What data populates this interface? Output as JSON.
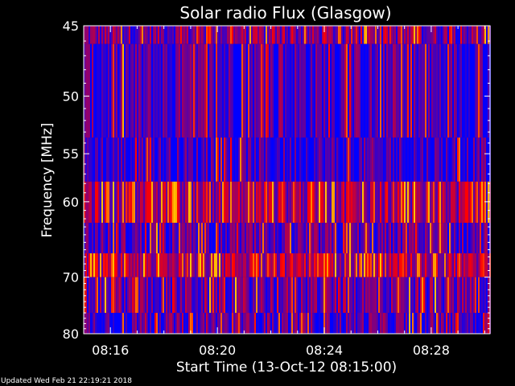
{
  "chart_data": {
    "type": "heatmap",
    "title": "Solar radio Flux (Glasgow)",
    "xlabel": "Start Time (13-Oct-12 08:15:00)",
    "ylabel": "Frequency [MHz]",
    "x_tick_labels": [
      "08:16",
      "08:20",
      "08:24",
      "08:28"
    ],
    "x_tick_minutes": [
      16,
      20,
      24,
      28
    ],
    "x_range_minutes": [
      15,
      30.2
    ],
    "y_ticks": [
      45,
      50,
      55,
      60,
      70,
      80
    ],
    "y_scale": "reciprocal",
    "y_range": [
      45,
      80
    ],
    "frequency_bands_mhz": [
      {
        "from": 45.0,
        "to": 46.2,
        "level": 0.45
      },
      {
        "from": 46.2,
        "to": 53.5,
        "level": 0.25
      },
      {
        "from": 53.5,
        "to": 57.8,
        "level": 0.2
      },
      {
        "from": 57.8,
        "to": 62.5,
        "level": 0.6
      },
      {
        "from": 62.5,
        "to": 66.5,
        "level": 0.3
      },
      {
        "from": 66.5,
        "to": 70.0,
        "level": 0.7
      },
      {
        "from": 70.0,
        "to": 76.0,
        "level": 0.4
      },
      {
        "from": 76.0,
        "to": 80.0,
        "level": 0.3
      }
    ],
    "colors": {
      "background": "#000000",
      "low": "#0000ff",
      "mid": "#ff0000",
      "high": "#ffc000",
      "axis": "#ffffff"
    }
  },
  "footer": "Updated Wed Feb 21 22:19:21 2018"
}
